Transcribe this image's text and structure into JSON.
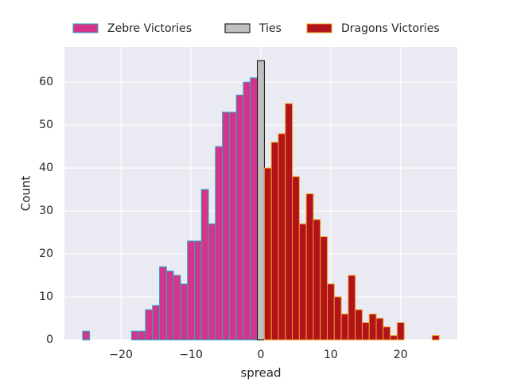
{
  "chart_data": {
    "type": "histogram",
    "xlabel": "spread",
    "ylabel": "Count",
    "bins": [
      -25.5,
      -24.5,
      -23.5,
      -22.5,
      -21.5,
      -20.5,
      -19.5,
      -18.5,
      -17.5,
      -16.5,
      -15.5,
      -14.5,
      -13.5,
      -12.5,
      -11.5,
      -10.5,
      -9.5,
      -8.5,
      -7.5,
      -6.5,
      -5.5,
      -4.5,
      -3.5,
      -2.5,
      -1.5,
      -0.5,
      0.5,
      1.5,
      2.5,
      3.5,
      4.5,
      5.5,
      6.5,
      7.5,
      8.5,
      9.5,
      10.5,
      11.5,
      12.5,
      13.5,
      14.5,
      15.5,
      16.5,
      17.5,
      18.5,
      19.5,
      20.5,
      21.5,
      22.5,
      23.5,
      24.5,
      25.5
    ],
    "series": [
      {
        "name": "Zebre Victories",
        "color": "#d4348a",
        "edgecolor": "#2aa6c9",
        "values": [
          2,
          0,
          0,
          0,
          0,
          0,
          0,
          2,
          2,
          7,
          8,
          17,
          16,
          15,
          13,
          23,
          23,
          35,
          27,
          45,
          53,
          53,
          57,
          60,
          61,
          0,
          0,
          0,
          0,
          0,
          0,
          0,
          0,
          0,
          0,
          0,
          0,
          0,
          0,
          0,
          0,
          0,
          0,
          0,
          0,
          0,
          0,
          0,
          0,
          0,
          0
        ]
      },
      {
        "name": "Ties",
        "color": "#c0c0c0",
        "edgecolor": "#000000",
        "values": [
          0,
          0,
          0,
          0,
          0,
          0,
          0,
          0,
          0,
          0,
          0,
          0,
          0,
          0,
          0,
          0,
          0,
          0,
          0,
          0,
          0,
          0,
          0,
          0,
          0,
          65,
          0,
          0,
          0,
          0,
          0,
          0,
          0,
          0,
          0,
          0,
          0,
          0,
          0,
          0,
          0,
          0,
          0,
          0,
          0,
          0,
          0,
          0,
          0,
          0,
          0
        ]
      },
      {
        "name": "Dragons Victories",
        "color": "#b0131b",
        "edgecolor": "#f0a020",
        "values": [
          0,
          0,
          0,
          0,
          0,
          0,
          0,
          0,
          0,
          0,
          0,
          0,
          0,
          0,
          0,
          0,
          0,
          0,
          0,
          0,
          0,
          0,
          0,
          0,
          0,
          0,
          40,
          46,
          48,
          55,
          38,
          27,
          34,
          28,
          24,
          13,
          10,
          6,
          15,
          7,
          4,
          6,
          5,
          3,
          1,
          4,
          0,
          0,
          0,
          0,
          1
        ]
      }
    ],
    "xlim": [
      -28.1,
      28.1
    ],
    "ylim": [
      0,
      68.2
    ],
    "xticks": [
      {
        "value": -20,
        "label": "−20"
      },
      {
        "value": -10,
        "label": "−10"
      },
      0,
      10,
      20
    ],
    "yticks": [
      0,
      10,
      20,
      30,
      40,
      50,
      60
    ],
    "grid": true,
    "legend": "top",
    "background": "#eaeaf2"
  }
}
